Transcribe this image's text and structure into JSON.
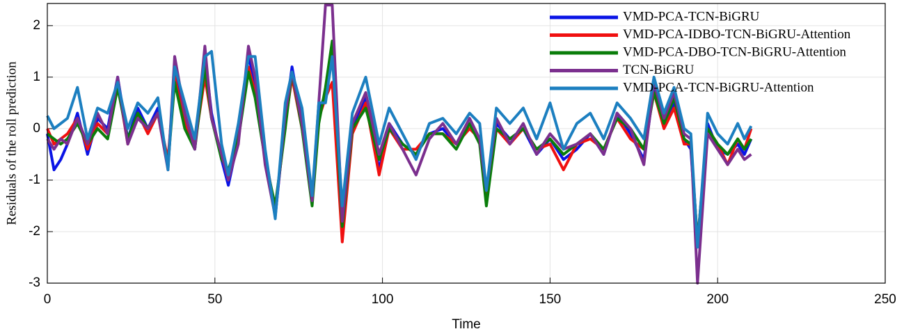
{
  "chart_data": {
    "type": "line",
    "x_label": "Time",
    "y_label": "Residuals of the roll prediction",
    "x": [
      0,
      2,
      4,
      6,
      9,
      12,
      15,
      18,
      21,
      24,
      27,
      30,
      33,
      36,
      38,
      41,
      44,
      47,
      49,
      52,
      54,
      57,
      60,
      62,
      65,
      68,
      71,
      73,
      76,
      79,
      81,
      83,
      85,
      88,
      91,
      95,
      99,
      102,
      106,
      110,
      114,
      118,
      122,
      126,
      129,
      131,
      134,
      138,
      142,
      146,
      150,
      154,
      158,
      162,
      166,
      170,
      174,
      178,
      181,
      184,
      187,
      190,
      192,
      194,
      197,
      200,
      203,
      206,
      208,
      210
    ],
    "series": [
      {
        "name": "VMD-PCA-TCN-BiGRU",
        "color": "#0a14e6",
        "values": [
          -0.1,
          -0.8,
          -0.6,
          -0.3,
          0.3,
          -0.5,
          0.2,
          0.0,
          1.0,
          -0.2,
          0.4,
          0.0,
          0.4,
          -0.7,
          1.1,
          0.2,
          -0.4,
          1.4,
          0.3,
          -0.6,
          -1.1,
          -0.2,
          1.4,
          0.9,
          -0.6,
          -1.7,
          0.2,
          1.2,
          0.1,
          -1.4,
          0.3,
          0.7,
          1.6,
          -2.1,
          0.0,
          0.6,
          -0.8,
          0.1,
          -0.3,
          -0.5,
          -0.1,
          0.0,
          -0.3,
          0.1,
          -0.2,
          -1.4,
          0.1,
          -0.2,
          0.0,
          -0.5,
          -0.2,
          -0.6,
          -0.4,
          -0.1,
          -0.5,
          0.3,
          -0.1,
          -0.6,
          0.8,
          0.1,
          0.5,
          -0.2,
          -0.4,
          -2.3,
          0.1,
          -0.4,
          -0.5,
          -0.3,
          -0.5,
          -0.2
        ]
      },
      {
        "name": "VMD-PCA-IDBO-TCN-BiGRU-Attention",
        "color": "#f01010",
        "values": [
          0.0,
          -0.3,
          -0.2,
          -0.1,
          0.2,
          -0.4,
          0.1,
          -0.1,
          0.9,
          -0.3,
          0.3,
          -0.1,
          0.3,
          -0.6,
          1.0,
          0.1,
          -0.3,
          1.0,
          0.2,
          -0.5,
          -0.9,
          -0.1,
          1.2,
          0.7,
          -0.5,
          -1.6,
          0.1,
          1.0,
          0.0,
          -1.3,
          0.2,
          0.6,
          0.9,
          -2.2,
          -0.1,
          0.5,
          -0.9,
          0.0,
          -0.4,
          -0.4,
          -0.1,
          -0.1,
          -0.3,
          0.0,
          -0.2,
          -1.3,
          0.0,
          -0.3,
          0.0,
          -0.4,
          -0.3,
          -0.8,
          -0.3,
          -0.2,
          -0.4,
          0.2,
          -0.2,
          -0.4,
          0.7,
          0.0,
          0.4,
          -0.3,
          -0.3,
          -2.2,
          0.0,
          -0.3,
          -0.7,
          -0.2,
          -0.4,
          0.0
        ]
      },
      {
        "name": "VMD-PCA-DBO-TCN-BiGRU-Attention",
        "color": "#0a7d0a",
        "values": [
          -0.1,
          -0.2,
          -0.3,
          -0.2,
          0.1,
          -0.3,
          0.0,
          -0.2,
          0.8,
          -0.2,
          0.3,
          0.0,
          0.3,
          -0.7,
          0.9,
          0.0,
          -0.4,
          1.2,
          0.2,
          -0.6,
          -0.8,
          -0.2,
          1.1,
          0.6,
          -0.6,
          -1.5,
          0.0,
          1.1,
          0.0,
          -1.5,
          0.1,
          0.8,
          1.7,
          -1.9,
          0.0,
          0.4,
          -0.6,
          0.0,
          -0.3,
          -0.5,
          -0.1,
          -0.1,
          -0.4,
          0.1,
          -0.3,
          -1.5,
          0.0,
          -0.2,
          0.0,
          -0.4,
          -0.2,
          -0.5,
          -0.3,
          -0.1,
          -0.4,
          0.2,
          0.0,
          -0.4,
          0.7,
          0.1,
          0.6,
          -0.2,
          -0.3,
          -2.2,
          0.0,
          -0.3,
          -0.5,
          -0.2,
          -0.4,
          -0.2
        ]
      },
      {
        "name": "TCN-BiGRU",
        "color": "#7b2f8e",
        "values": [
          -0.2,
          -0.4,
          -0.2,
          -0.3,
          0.2,
          -0.3,
          0.3,
          -0.1,
          1.0,
          -0.3,
          0.2,
          0.0,
          0.3,
          -0.8,
          1.4,
          0.3,
          -0.4,
          1.6,
          0.2,
          -0.5,
          -1.0,
          -0.3,
          1.6,
          1.0,
          -0.7,
          -1.7,
          0.3,
          1.1,
          0.1,
          -1.4,
          0.5,
          2.4,
          2.4,
          -1.8,
          0.1,
          0.7,
          -0.5,
          0.1,
          -0.4,
          -0.9,
          -0.2,
          0.1,
          -0.3,
          0.2,
          -0.2,
          -1.2,
          0.2,
          -0.3,
          0.1,
          -0.5,
          -0.1,
          -0.4,
          -0.3,
          -0.1,
          -0.5,
          0.3,
          0.0,
          -0.7,
          0.9,
          0.2,
          0.7,
          -0.1,
          -0.2,
          -3.0,
          -0.1,
          -0.4,
          -0.7,
          -0.4,
          -0.6,
          -0.5
        ]
      },
      {
        "name": "VMD-PCA-TCN-BiGRU-Attention",
        "color": "#1c7fc0",
        "values": [
          0.25,
          0.0,
          0.1,
          0.2,
          0.8,
          -0.2,
          0.4,
          0.3,
          0.9,
          0.0,
          0.5,
          0.3,
          0.6,
          -0.8,
          1.2,
          0.5,
          -0.2,
          1.4,
          1.5,
          -0.3,
          -0.9,
          0.1,
          1.4,
          1.4,
          -0.4,
          -1.75,
          0.5,
          1.1,
          0.4,
          -1.3,
          0.5,
          0.5,
          1.4,
          -1.5,
          0.3,
          1.0,
          -0.3,
          0.4,
          -0.1,
          -0.6,
          0.1,
          0.2,
          -0.1,
          0.3,
          0.1,
          -1.2,
          0.4,
          0.1,
          0.4,
          -0.2,
          0.5,
          -0.4,
          0.1,
          0.3,
          -0.2,
          0.5,
          0.2,
          -0.2,
          1.0,
          0.3,
          0.8,
          0.0,
          -0.1,
          -2.3,
          0.3,
          -0.1,
          -0.3,
          0.1,
          -0.2,
          0.05
        ]
      }
    ],
    "xlim": [
      0,
      250
    ],
    "ylim": [
      -3,
      2.43
    ],
    "xticks": [
      0,
      50,
      100,
      150,
      200,
      250
    ],
    "yticks": [
      -3,
      -2,
      -1,
      0,
      1,
      2
    ],
    "grid": true,
    "legend": "upper right"
  }
}
